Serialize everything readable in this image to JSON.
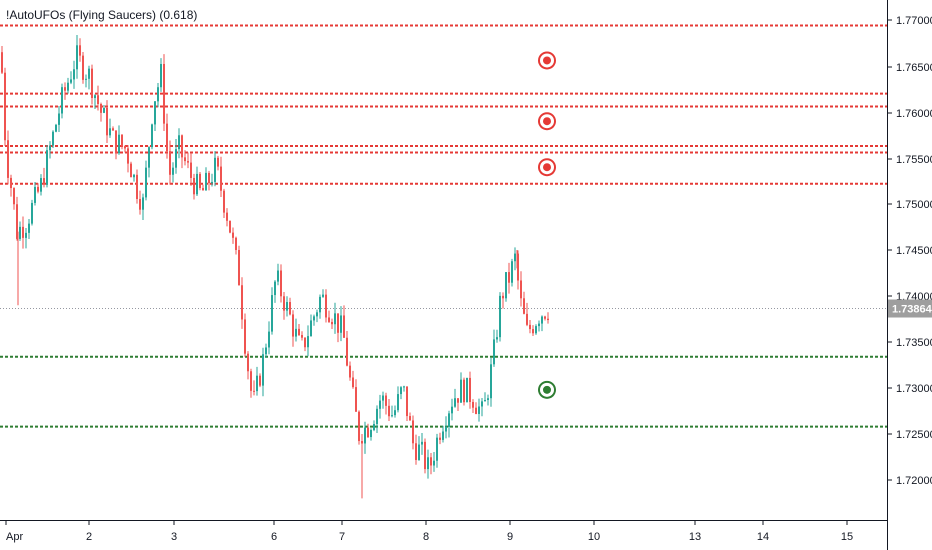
{
  "indicator": {
    "title": "!AutoUFOs (Flying Saucers) (0.618)"
  },
  "colors": {
    "up": "#26a69a",
    "down": "#ef5350",
    "resistance": "#e53935",
    "support": "#2e7d32",
    "last_price_bg": "#9e9e9e",
    "axis_line": "#131722",
    "price_line": "#9598a1"
  },
  "chart_data": {
    "type": "candlestick",
    "title": "!AutoUFOs (Flying Saucers) (0.618)",
    "x_ticks": [
      "Apr",
      "2",
      "3",
      "6",
      "7",
      "8",
      "9",
      "10",
      "13",
      "14",
      "15"
    ],
    "y_ticks": [
      "1.77000",
      "1.76500",
      "1.76000",
      "1.75500",
      "1.75000",
      "1.74500",
      "1.74000",
      "1.73500",
      "1.73000",
      "1.72500",
      "1.72000"
    ],
    "ylim": [
      1.7155,
      1.7714
    ],
    "last_price": "1.73864",
    "resistance_levels": [
      1.7694,
      1.762,
      1.7606,
      1.7563,
      1.7556,
      1.7522
    ],
    "support_levels": [
      1.7334,
      1.7258
    ],
    "markers": [
      {
        "type": "resistance",
        "price": 1.7656
      },
      {
        "type": "resistance",
        "price": 1.759
      },
      {
        "type": "resistance",
        "price": 1.754
      },
      {
        "type": "support",
        "price": 1.7298
      }
    ],
    "close_anchors": [
      [
        0,
        1.7665
      ],
      [
        5,
        1.7555
      ],
      [
        10,
        1.752
      ],
      [
        16,
        1.747
      ],
      [
        25,
        1.748
      ],
      [
        40,
        1.752
      ],
      [
        60,
        1.761
      ],
      [
        75,
        1.766
      ],
      [
        88,
        1.764
      ],
      [
        100,
        1.76
      ],
      [
        112,
        1.757
      ],
      [
        125,
        1.756
      ],
      [
        135,
        1.752
      ],
      [
        142,
        1.75
      ],
      [
        152,
        1.761
      ],
      [
        160,
        1.764
      ],
      [
        168,
        1.753
      ],
      [
        178,
        1.756
      ],
      [
        190,
        1.753
      ],
      [
        200,
        1.751
      ],
      [
        215,
        1.754
      ],
      [
        228,
        1.748
      ],
      [
        238,
        1.742
      ],
      [
        245,
        1.734
      ],
      [
        252,
        1.728
      ],
      [
        262,
        1.733
      ],
      [
        275,
        1.742
      ],
      [
        288,
        1.738
      ],
      [
        300,
        1.734
      ],
      [
        310,
        1.737
      ],
      [
        320,
        1.74
      ],
      [
        332,
        1.738
      ],
      [
        342,
        1.736
      ],
      [
        350,
        1.73
      ],
      [
        358,
        1.725
      ],
      [
        368,
        1.726
      ],
      [
        380,
        1.729
      ],
      [
        392,
        1.727
      ],
      [
        402,
        1.73
      ],
      [
        412,
        1.724
      ],
      [
        420,
        1.723
      ],
      [
        428,
        1.721
      ],
      [
        440,
        1.726
      ],
      [
        452,
        1.729
      ],
      [
        462,
        1.73
      ],
      [
        472,
        1.729
      ],
      [
        482,
        1.727
      ],
      [
        492,
        1.733
      ],
      [
        500,
        1.74
      ],
      [
        508,
        1.742
      ],
      [
        514,
        1.744
      ],
      [
        520,
        1.739
      ],
      [
        526,
        1.736
      ],
      [
        532,
        1.737
      ],
      [
        538,
        1.738
      ],
      [
        544,
        1.7385
      ],
      [
        548,
        1.73864
      ]
    ]
  }
}
